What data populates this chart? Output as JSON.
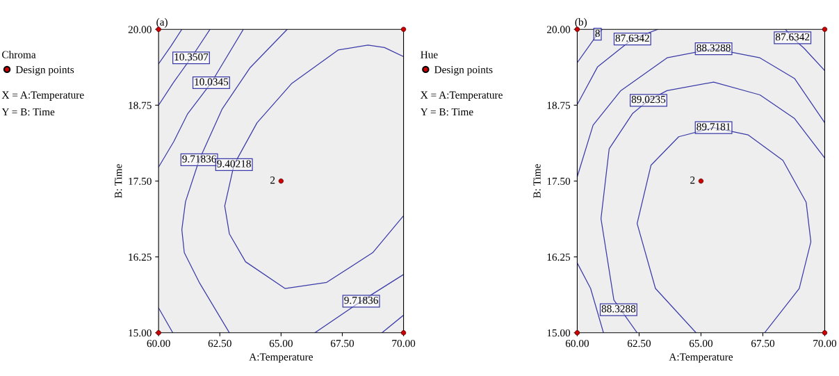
{
  "chart_data": [
    {
      "type": "line",
      "title": "(a)",
      "xlabel": "A:Temperature",
      "ylabel": "B: Time",
      "legend_title": "Chroma",
      "legend": "left",
      "grid": false,
      "marker": "none",
      "line_style": "solid",
      "xlim": [
        60,
        70
      ],
      "ylim": [
        15,
        20
      ],
      "xticks": [
        {
          "value": 60,
          "label": "60.00"
        },
        {
          "value": 62.5,
          "label": "62.50"
        },
        {
          "value": 65,
          "label": "65.00"
        },
        {
          "value": 67.5,
          "label": "67.50"
        },
        {
          "value": 70,
          "label": "70.00"
        }
      ],
      "yticks": [
        {
          "value": 15,
          "label": "15.00"
        },
        {
          "value": 16.25,
          "label": "16.25"
        },
        {
          "value": 17.5,
          "label": "17.50"
        },
        {
          "value": 18.75,
          "label": "18.75"
        },
        {
          "value": 20,
          "label": "20.00"
        }
      ],
      "series": [
        {
          "color": "#3a3aa8",
          "x": [
            60,
            60.5,
            60.95
          ],
          "values": [
            19.43,
            19.72,
            20
          ]
        },
        {
          "color": "#3a3aa8",
          "x": [
            60,
            60.6,
            61.33,
            62.1
          ],
          "values": [
            18.75,
            19.12,
            19.53,
            20
          ]
        },
        {
          "color": "#3a3aa8",
          "x": [
            60,
            60.62,
            61.19,
            62.15,
            63.46
          ],
          "values": [
            17.73,
            18.15,
            18.61,
            19.12,
            20
          ]
        },
        {
          "color": "#3a3aa8",
          "x": [
            65.25,
            63.74,
            62.6,
            61.66,
            61.1,
            60.95,
            61.05,
            61.66,
            62.89
          ],
          "values": [
            20,
            19.37,
            18.69,
            17.85,
            17.16,
            16.7,
            16.32,
            15.83,
            15
          ]
        },
        {
          "color": "#3a3aa8",
          "x": [
            70,
            69.22,
            68.55,
            67.33,
            65.44,
            64.02,
            63.08,
            62.7,
            62.89,
            63.55,
            65.16,
            66.86,
            68.74,
            70
          ],
          "values": [
            19.55,
            19.7,
            19.74,
            19.66,
            19.11,
            18.46,
            17.77,
            17.09,
            16.63,
            16.17,
            15.73,
            15.83,
            16.32,
            16.93
          ]
        },
        {
          "color": "#3a3aa8",
          "x": [
            66.38,
            68.27,
            70
          ],
          "values": [
            15,
            15.52,
            15.96
          ]
        },
        {
          "color": "#3a3aa8",
          "x": [
            69.12,
            70
          ],
          "values": [
            15,
            15.29
          ]
        },
        {
          "color": "#3a3aa8",
          "x": [
            60,
            60.58
          ],
          "values": [
            15.41,
            15
          ]
        },
        {
          "type": "scatter",
          "name": "Design points",
          "color": "#cc0000",
          "marker": "circle",
          "x": [
            60,
            60,
            70,
            70,
            65
          ],
          "values": [
            15,
            20,
            15,
            20,
            17.5
          ]
        }
      ],
      "annotations": [
        {
          "text": "10.3507",
          "x": 61.33,
          "y": 19.53
        },
        {
          "text": "10.0345",
          "x": 62.15,
          "y": 19.12
        },
        {
          "text": "9.71836",
          "x": 61.66,
          "y": 17.85
        },
        {
          "text": "9.40218",
          "x": 63.08,
          "y": 17.77
        },
        {
          "text": "9.71836",
          "x": 68.27,
          "y": 15.52
        },
        {
          "text": "2",
          "x": 65,
          "y": 17.5
        },
        "X = A:Temperature",
        "Y = B: Time"
      ]
    },
    {
      "type": "line",
      "title": "(b)",
      "xlabel": "A:Temperature",
      "ylabel": "B: Time",
      "legend_title": "Hue",
      "legend": "left",
      "grid": false,
      "marker": "none",
      "line_style": "solid",
      "xlim": [
        60,
        70
      ],
      "ylim": [
        15,
        20
      ],
      "xticks": [
        {
          "value": 60,
          "label": "60.00"
        },
        {
          "value": 62.5,
          "label": "62.50"
        },
        {
          "value": 65,
          "label": "65.00"
        },
        {
          "value": 67.5,
          "label": "67.50"
        },
        {
          "value": 70,
          "label": "70.00"
        }
      ],
      "yticks": [
        {
          "value": 15,
          "label": "15.00"
        },
        {
          "value": 16.25,
          "label": "16.25"
        },
        {
          "value": 17.5,
          "label": "17.50"
        },
        {
          "value": 18.75,
          "label": "18.75"
        },
        {
          "value": 20,
          "label": "20.00"
        }
      ],
      "series": [
        {
          "color": "#3a3aa8",
          "x": [
            60,
            60.82,
            61.01
          ],
          "values": [
            19.45,
            19.92,
            20
          ]
        },
        {
          "color": "#3a3aa8",
          "x": [
            60,
            60.82,
            62.23,
            63.26
          ],
          "values": [
            18.76,
            19.38,
            19.84,
            20
          ]
        },
        {
          "color": "#3a3aa8",
          "x": [
            60,
            60.64,
            61.76,
            63.63,
            65.51,
            67.38,
            68.78,
            70
          ],
          "values": [
            17.57,
            18.42,
            18.99,
            19.53,
            19.68,
            19.53,
            19.19,
            18.46
          ]
        },
        {
          "color": "#3a3aa8",
          "x": [
            68.41,
            68.7,
            69.16,
            70
          ],
          "values": [
            20,
            19.86,
            19.69,
            19.32
          ]
        },
        {
          "color": "#3a3aa8",
          "x": [
            62.42,
            61.48,
            60.96,
            61.29,
            62.23,
            62.88,
            63.63,
            65.51,
            67.38,
            68.78,
            70
          ],
          "values": [
            15,
            15.54,
            16.88,
            18.03,
            18.61,
            18.83,
            18.99,
            19.13,
            18.92,
            18.53,
            17.88
          ]
        },
        {
          "color": "#3a3aa8",
          "x": [
            64.8,
            63.16,
            62.42,
            62.98,
            64.1,
            65.51,
            66.91,
            68.31,
            69.25,
            69.44,
            68.97,
            67.57
          ],
          "values": [
            15,
            15.73,
            16.8,
            17.76,
            18.23,
            18.38,
            18.26,
            17.84,
            17.15,
            16.5,
            15.73,
            15
          ]
        },
        {
          "color": "#3a3aa8",
          "x": [
            60,
            60.54,
            61.06
          ],
          "values": [
            16.15,
            15.73,
            15
          ]
        },
        {
          "type": "scatter",
          "name": "Design points",
          "color": "#cc0000",
          "marker": "circle",
          "x": [
            60,
            60,
            70,
            70,
            65
          ],
          "values": [
            15,
            20,
            15,
            20,
            17.5
          ]
        }
      ],
      "annotations": [
        {
          "text": "8",
          "x": 60.82,
          "y": 19.92
        },
        {
          "text": "87.6342",
          "x": 62.23,
          "y": 19.84
        },
        {
          "text": "88.3288",
          "x": 65.51,
          "y": 19.68
        },
        {
          "text": "87.6342",
          "x": 68.7,
          "y": 19.86
        },
        {
          "text": "89.0235",
          "x": 62.88,
          "y": 18.83
        },
        {
          "text": "89.7181",
          "x": 65.51,
          "y": 18.38
        },
        {
          "text": "88.3288",
          "x": 61.67,
          "y": 15.38
        },
        {
          "text": "2",
          "x": 65,
          "y": 17.5
        },
        "X = A:Temperature",
        "Y = B: Time"
      ]
    }
  ]
}
